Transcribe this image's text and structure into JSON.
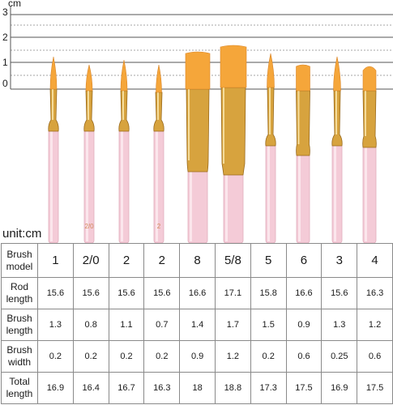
{
  "ruler": {
    "unit": "cm",
    "ticks": [
      "3",
      "2",
      "1",
      "0"
    ]
  },
  "unit_label": "unit:cm",
  "brushes": [
    {
      "model": "1",
      "shape": "round",
      "handle_mark": ""
    },
    {
      "model": "2/0",
      "shape": "round",
      "handle_mark": "2/0"
    },
    {
      "model": "2",
      "shape": "round",
      "handle_mark": ""
    },
    {
      "model": "2",
      "shape": "round",
      "handle_mark": "2"
    },
    {
      "model": "8",
      "shape": "flat",
      "handle_mark": ""
    },
    {
      "model": "5/8",
      "shape": "flat",
      "handle_mark": ""
    },
    {
      "model": "5",
      "shape": "round",
      "handle_mark": ""
    },
    {
      "model": "6",
      "shape": "flat",
      "handle_mark": ""
    },
    {
      "model": "3",
      "shape": "round",
      "handle_mark": ""
    },
    {
      "model": "4",
      "shape": "filbert",
      "handle_mark": ""
    }
  ],
  "colors": {
    "bristle": "#f5a63a",
    "ferrule": "#d7a33e",
    "handle": "#f4cbd7"
  },
  "table": {
    "rows": [
      {
        "label": [
          "Brush",
          "model"
        ],
        "values": [
          "1",
          "2/0",
          "2",
          "2",
          "8",
          "5/8",
          "5",
          "6",
          "3",
          "4"
        ]
      },
      {
        "label": [
          "Rod",
          "length"
        ],
        "values": [
          "15.6",
          "15.6",
          "15.6",
          "15.6",
          "16.6",
          "17.1",
          "15.8",
          "16.6",
          "15.6",
          "16.3"
        ]
      },
      {
        "label": [
          "Brush",
          "length"
        ],
        "values": [
          "1.3",
          "0.8",
          "1.1",
          "0.7",
          "1.4",
          "1.7",
          "1.5",
          "0.9",
          "1.3",
          "1.2"
        ]
      },
      {
        "label": [
          "Brush",
          "width"
        ],
        "values": [
          "0.2",
          "0.2",
          "0.2",
          "0.2",
          "0.9",
          "1.2",
          "0.2",
          "0.6",
          "0.25",
          "0.6"
        ]
      },
      {
        "label": [
          "Total",
          "length"
        ],
        "values": [
          "16.9",
          "16.4",
          "16.7",
          "16.3",
          "18",
          "18.8",
          "17.3",
          "17.5",
          "16.9",
          "17.5"
        ]
      }
    ]
  }
}
